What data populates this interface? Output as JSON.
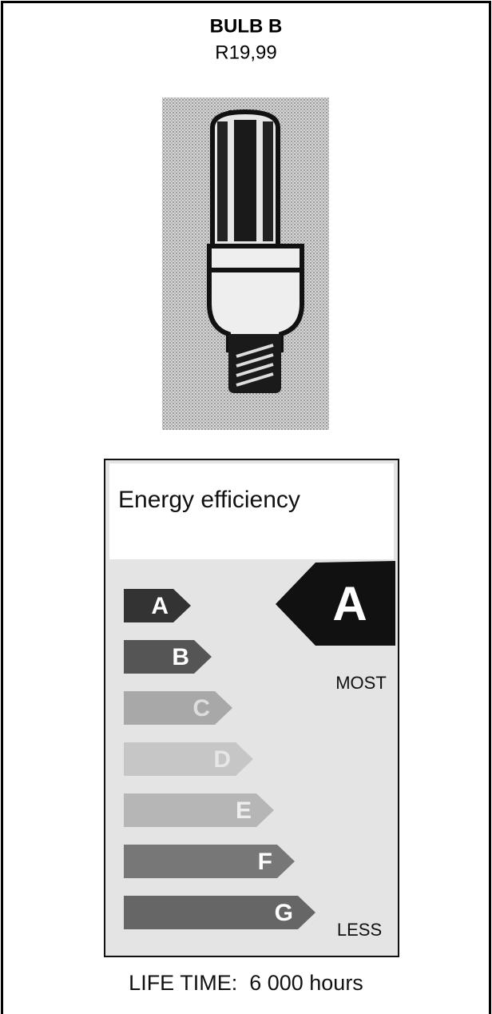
{
  "header": {
    "title": "BULB B",
    "price": "R19,99"
  },
  "energy_label": {
    "title": "Energy efficiency",
    "grades": [
      "A",
      "B",
      "C",
      "D",
      "E",
      "F",
      "G"
    ],
    "rating": "A",
    "most": "MOST",
    "less": "LESS"
  },
  "life_time": "LIFE TIME:  6 000 hours"
}
